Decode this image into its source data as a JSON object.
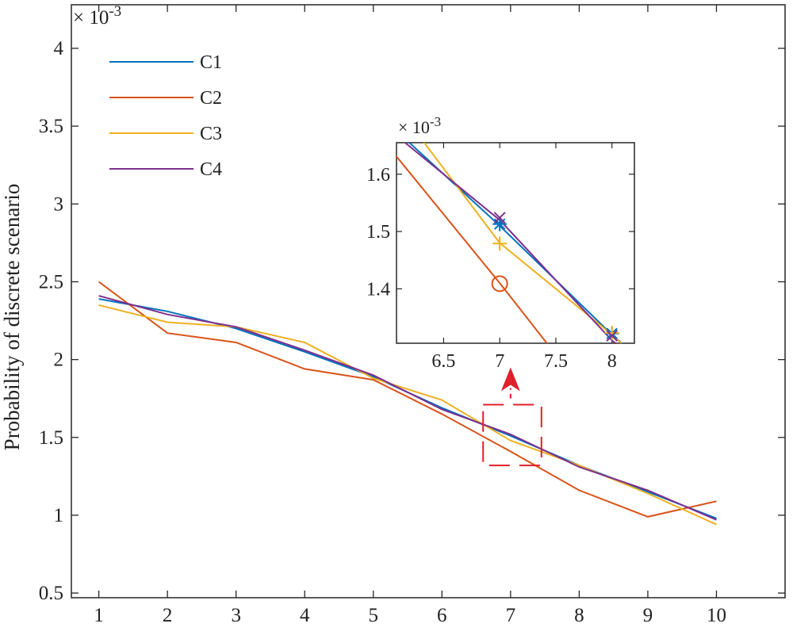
{
  "chart_data": [
    {
      "type": "line",
      "ylabel": "Probability of discrete scenario",
      "xlabel": "",
      "exponent": {
        "base": "× 10",
        "power": "-3"
      },
      "xlim": [
        0.6,
        11.0
      ],
      "ylim": [
        0.47,
        4.28
      ],
      "xticks": [
        1,
        2,
        3,
        4,
        5,
        6,
        7,
        8,
        9,
        10
      ],
      "xtick_labels": [
        "1",
        "2",
        "3",
        "4",
        "5",
        "6",
        "7",
        "8",
        "9",
        "10"
      ],
      "yticks": [
        0.5,
        1,
        1.5,
        2,
        2.5,
        3,
        3.5,
        4
      ],
      "ytick_labels": [
        "0.5",
        "1",
        "1.5",
        "2",
        "2.5",
        "3",
        "3.5",
        "4"
      ],
      "x": [
        1,
        2,
        3,
        4,
        5,
        6,
        7,
        8,
        9,
        10
      ],
      "series": [
        {
          "name": "C1",
          "color": "#0072BD",
          "values": [
            2.39,
            2.31,
            2.2,
            2.05,
            1.89,
            1.69,
            1.51,
            1.32,
            1.15,
            0.98
          ]
        },
        {
          "name": "C2",
          "color": "#D95319",
          "values": [
            2.5,
            2.17,
            2.11,
            1.94,
            1.87,
            1.65,
            1.41,
            1.16,
            0.99,
            1.09
          ]
        },
        {
          "name": "C3",
          "color": "#EDB120",
          "values": [
            2.35,
            2.24,
            2.21,
            2.11,
            1.88,
            1.74,
            1.48,
            1.32,
            1.14,
            0.94
          ]
        },
        {
          "name": "C4",
          "color": "#7E2F8E",
          "values": [
            2.41,
            2.29,
            2.21,
            2.06,
            1.9,
            1.68,
            1.52,
            1.31,
            1.16,
            0.97
          ]
        }
      ],
      "legend": {
        "position": "top-left",
        "entries": [
          "C1",
          "C2",
          "C3",
          "C4"
        ]
      },
      "highlight_box": {
        "x_range": [
          6.6,
          7.45
        ],
        "y_range": [
          1.32,
          1.71
        ],
        "color": "#E0202A"
      },
      "arrow": {
        "x": 7.0,
        "y_from": 1.75,
        "y_to": 1.95,
        "color": "#E0202A"
      },
      "grid": false
    },
    {
      "type": "line",
      "role": "inset-zoom",
      "exponent": {
        "base": "× 10",
        "power": "-3"
      },
      "xlim": [
        6.08,
        8.2
      ],
      "ylim": [
        1.305,
        1.655
      ],
      "xticks": [
        6.5,
        7,
        7.5,
        8
      ],
      "xtick_labels": [
        "6.5",
        "7",
        "7.5",
        "8"
      ],
      "yticks": [
        1.4,
        1.5,
        1.6
      ],
      "ytick_labels": [
        "1.4",
        "1.5",
        "1.6"
      ],
      "markers": [
        {
          "series": "C1",
          "symbol": "asterisk",
          "points": [
            [
              7,
              1.513
            ],
            [
              8,
              1.322
            ]
          ]
        },
        {
          "series": "C2",
          "symbol": "circle",
          "points": [
            [
              7,
              1.409
            ]
          ]
        },
        {
          "series": "C3",
          "symbol": "plus",
          "points": [
            [
              7,
              1.479
            ],
            [
              8,
              1.323
            ]
          ]
        },
        {
          "series": "C4",
          "symbol": "cross",
          "points": [
            [
              7,
              1.524
            ],
            [
              8,
              1.318
            ]
          ]
        }
      ],
      "grid": false
    }
  ]
}
